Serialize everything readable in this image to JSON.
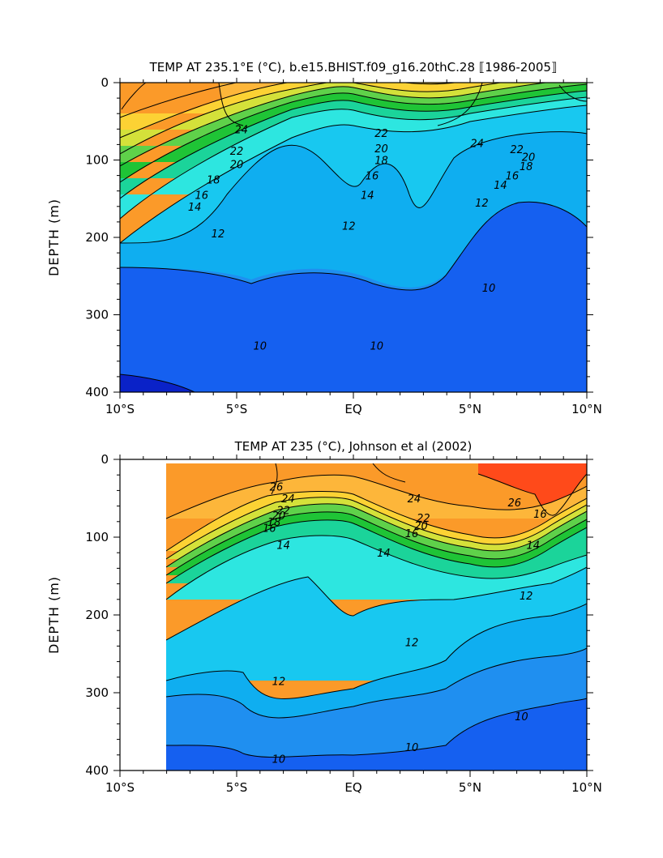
{
  "chart_data": [
    {
      "type": "contour",
      "title": "TEMP AT 235.1°E (°C), b.e15.BHIST.f09_g16.20thC.28 ⟦1986-2005⟧",
      "xlabel": "",
      "ylabel": "DEPTH (m)",
      "xlim": [
        -10,
        10
      ],
      "ylim": [
        400,
        0
      ],
      "x_ticks": [
        -10,
        -5,
        0,
        5,
        10
      ],
      "x_tick_labels": [
        "10°S",
        "5°S",
        "EQ",
        "5°N",
        "10°N"
      ],
      "y_ticks": [
        0,
        100,
        200,
        300,
        400
      ],
      "y_tick_labels": [
        "0",
        "100",
        "200",
        "300",
        "400"
      ],
      "data_xlim": [
        -10,
        10
      ],
      "contour_interval": 1,
      "labeled_levels": [
        {
          "value": 24,
          "label": "24",
          "x": -4.8,
          "y": 60
        },
        {
          "value": 22,
          "label": "22",
          "x": -5.0,
          "y": 88
        },
        {
          "value": 20,
          "label": "20",
          "x": -5.0,
          "y": 105
        },
        {
          "value": 18,
          "label": "18",
          "x": -6.0,
          "y": 125
        },
        {
          "value": 16,
          "label": "16",
          "x": -6.5,
          "y": 145
        },
        {
          "value": 14,
          "label": "14",
          "x": -6.8,
          "y": 160
        },
        {
          "value": 12,
          "label": "12",
          "x": -5.8,
          "y": 195
        },
        {
          "value": 10,
          "label": "10",
          "x": -4.0,
          "y": 340
        },
        {
          "value": 22,
          "label": "22",
          "x": 1.2,
          "y": 65
        },
        {
          "value": 20,
          "label": "20",
          "x": 1.2,
          "y": 85
        },
        {
          "value": 18,
          "label": "18",
          "x": 1.2,
          "y": 100
        },
        {
          "value": 16,
          "label": "16",
          "x": 0.8,
          "y": 120
        },
        {
          "value": 14,
          "label": "14",
          "x": 0.6,
          "y": 145
        },
        {
          "value": 12,
          "label": "12",
          "x": -0.2,
          "y": 185
        },
        {
          "value": 24,
          "label": "24",
          "x": 5.3,
          "y": 78
        },
        {
          "value": 22,
          "label": "22",
          "x": 7.0,
          "y": 86
        },
        {
          "value": 20,
          "label": "20",
          "x": 7.5,
          "y": 96
        },
        {
          "value": 18,
          "label": "18",
          "x": 7.4,
          "y": 108
        },
        {
          "value": 16,
          "label": "16",
          "x": 6.8,
          "y": 120
        },
        {
          "value": 14,
          "label": "14",
          "x": 6.3,
          "y": 132
        },
        {
          "value": 12,
          "label": "12",
          "x": 5.5,
          "y": 155
        },
        {
          "value": 10,
          "label": "10",
          "x": 1.0,
          "y": 340
        },
        {
          "value": 10,
          "label": "10",
          "x": 5.8,
          "y": 265
        }
      ]
    },
    {
      "type": "contour",
      "title": "TEMP AT 235 (°C), Johnson et al (2002)",
      "xlabel": "",
      "ylabel": "DEPTH (m)",
      "xlim": [
        -10,
        10
      ],
      "ylim": [
        400,
        0
      ],
      "x_ticks": [
        -10,
        -5,
        0,
        5,
        10
      ],
      "x_tick_labels": [
        "10°S",
        "5°S",
        "EQ",
        "5°N",
        "10°N"
      ],
      "y_ticks": [
        0,
        100,
        200,
        300,
        400
      ],
      "y_tick_labels": [
        "0",
        "100",
        "200",
        "300",
        "400"
      ],
      "data_xlim": [
        -8,
        10
      ],
      "contour_interval": 1,
      "labeled_levels": [
        {
          "value": 26,
          "label": "26",
          "x": -3.3,
          "y": 35
        },
        {
          "value": 24,
          "label": "24",
          "x": -2.8,
          "y": 50
        },
        {
          "value": 22,
          "label": "22",
          "x": -3.0,
          "y": 65
        },
        {
          "value": 20,
          "label": "20",
          "x": -3.2,
          "y": 72
        },
        {
          "value": 18,
          "label": "18",
          "x": -3.4,
          "y": 80
        },
        {
          "value": 16,
          "label": "16",
          "x": -3.6,
          "y": 88
        },
        {
          "value": 14,
          "label": "14",
          "x": -3.0,
          "y": 110
        },
        {
          "value": 24,
          "label": "24",
          "x": 2.6,
          "y": 50
        },
        {
          "value": 22,
          "label": "22",
          "x": 3.0,
          "y": 75
        },
        {
          "value": 20,
          "label": "20",
          "x": 2.9,
          "y": 85
        },
        {
          "value": 16,
          "label": "16",
          "x": 2.5,
          "y": 95
        },
        {
          "value": 14,
          "label": "14",
          "x": 1.3,
          "y": 120
        },
        {
          "value": 26,
          "label": "26",
          "x": 6.9,
          "y": 55
        },
        {
          "value": 16,
          "label": "16",
          "x": 8.0,
          "y": 70
        },
        {
          "value": 14,
          "label": "14",
          "x": 7.7,
          "y": 110
        },
        {
          "value": 12,
          "label": "12",
          "x": 7.4,
          "y": 175
        },
        {
          "value": 12,
          "label": "12",
          "x": 2.5,
          "y": 235
        },
        {
          "value": 12,
          "label": "12",
          "x": -3.2,
          "y": 285
        },
        {
          "value": 10,
          "label": "10",
          "x": 7.2,
          "y": 330
        },
        {
          "value": 10,
          "label": "10",
          "x": 2.5,
          "y": 370
        },
        {
          "value": 10,
          "label": "10",
          "x": -3.2,
          "y": 385
        }
      ]
    }
  ]
}
